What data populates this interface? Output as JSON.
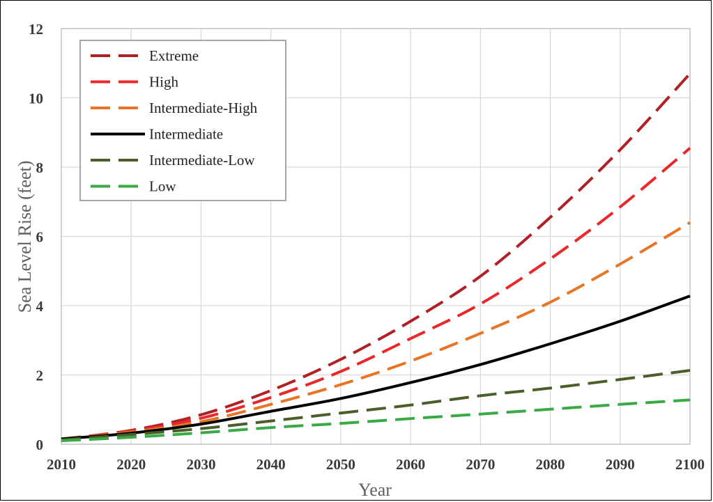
{
  "chart_data": {
    "type": "line",
    "title": "",
    "xlabel": "Year",
    "ylabel": "Sea Level Rise (feet)",
    "xlim": [
      2010,
      2100
    ],
    "ylim": [
      0,
      12
    ],
    "xticks": [
      2010,
      2020,
      2030,
      2040,
      2050,
      2060,
      2070,
      2080,
      2090,
      2100
    ],
    "yticks": [
      0,
      2,
      4,
      6,
      8,
      10,
      12
    ],
    "grid": true,
    "legend_position": "top-left",
    "x": [
      2010,
      2020,
      2030,
      2040,
      2050,
      2060,
      2070,
      2080,
      2090,
      2100
    ],
    "series": [
      {
        "name": "Extreme",
        "color": "#b02025",
        "dash": "dashed",
        "values": [
          0.15,
          0.4,
          0.85,
          1.55,
          2.45,
          3.55,
          4.85,
          6.55,
          8.5,
          10.7
        ]
      },
      {
        "name": "High",
        "color": "#e8282b",
        "dash": "dashed",
        "values": [
          0.15,
          0.38,
          0.75,
          1.35,
          2.1,
          3.05,
          4.05,
          5.35,
          6.85,
          8.55
        ]
      },
      {
        "name": "Intermediate-High",
        "color": "#e87525",
        "dash": "dashed",
        "values": [
          0.15,
          0.35,
          0.65,
          1.15,
          1.72,
          2.4,
          3.2,
          4.1,
          5.2,
          6.4
        ]
      },
      {
        "name": "Intermediate",
        "color": "#000000",
        "dash": "solid",
        "values": [
          0.15,
          0.32,
          0.58,
          0.95,
          1.32,
          1.78,
          2.3,
          2.9,
          3.55,
          4.28
        ]
      },
      {
        "name": "Intermediate-Low",
        "color": "#4b5e2a",
        "dash": "dashed",
        "values": [
          0.12,
          0.28,
          0.45,
          0.67,
          0.9,
          1.13,
          1.4,
          1.62,
          1.87,
          2.13
        ]
      },
      {
        "name": "Low",
        "color": "#3aaa46",
        "dash": "dashed",
        "values": [
          0.1,
          0.2,
          0.33,
          0.48,
          0.6,
          0.74,
          0.87,
          1.01,
          1.15,
          1.28
        ]
      }
    ]
  }
}
